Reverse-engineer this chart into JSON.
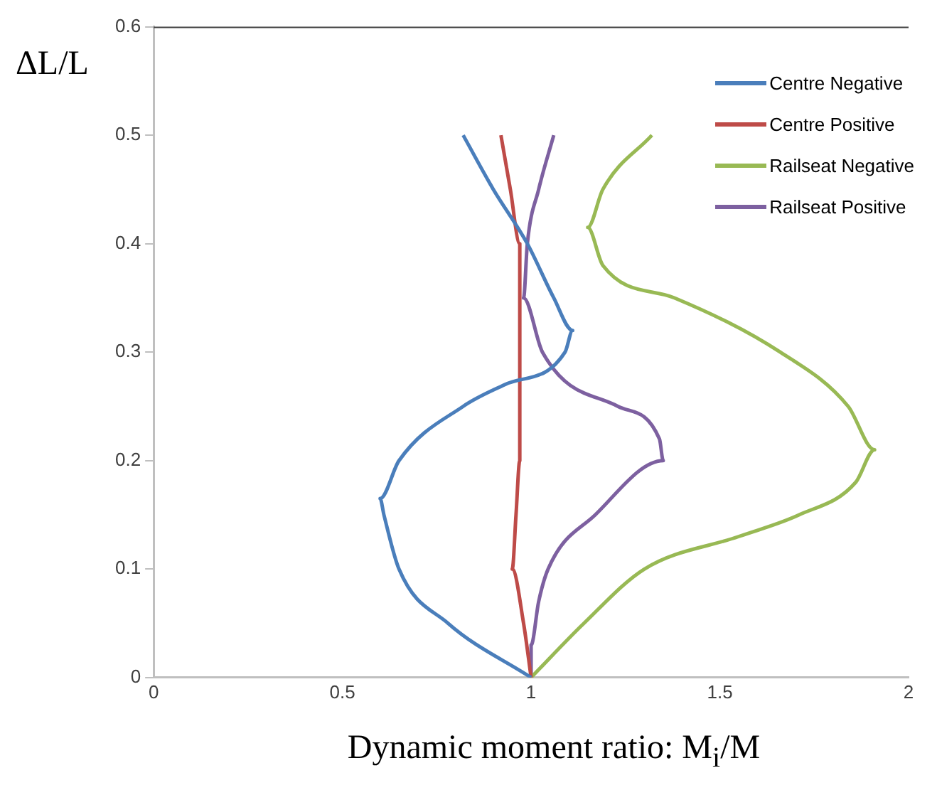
{
  "chart_data": {
    "type": "line",
    "xlabel": "Dynamic moment ratio: M$_{i}$/M",
    "ylabel": "ΔL/L",
    "xlim": [
      0,
      2
    ],
    "xticks": [
      0,
      0.5,
      1,
      1.5,
      2
    ],
    "ylim": [
      0,
      0.6
    ],
    "yticks": [
      0,
      0.1,
      0.2,
      0.3,
      0.4,
      0.5,
      0.6
    ],
    "grid": false,
    "legend": "top right",
    "series": [
      {
        "name": "Centre Negative",
        "color": "#4a7ebb",
        "x": [
          1,
          0.78,
          0.65,
          0.61,
          0.6,
          0.65,
          0.82,
          0.93,
          1.09,
          1.11,
          1.06,
          0.99,
          0.9,
          0.82
        ],
        "values": [
          0,
          0.05,
          0.1,
          0.15,
          0.165,
          0.2,
          0.25,
          0.27,
          0.3,
          0.32,
          0.35,
          0.4,
          0.45,
          0.5
        ]
      },
      {
        "name": "Centre Positive",
        "color": "#be4b48",
        "x": [
          1,
          0.98,
          0.95,
          0.96,
          0.97,
          0.97,
          0.97,
          0.97,
          0.97,
          0.945,
          0.92
        ],
        "values": [
          0,
          0.05,
          0.1,
          0.15,
          0.2,
          0.25,
          0.3,
          0.35,
          0.4,
          0.45,
          0.5
        ]
      },
      {
        "name": "Railseat Negative",
        "color": "#98b954",
        "x": [
          1,
          1.14,
          1.3,
          1.55,
          1.71,
          1.86,
          1.91,
          1.84,
          1.66,
          1.38,
          1.19,
          1.15,
          1.19,
          1.32
        ],
        "values": [
          0,
          0.05,
          0.1,
          0.13,
          0.15,
          0.18,
          0.21,
          0.25,
          0.3,
          0.35,
          0.38,
          0.415,
          0.45,
          0.5
        ]
      },
      {
        "name": "Railseat Positive",
        "color": "#7d60a0",
        "x": [
          1,
          1,
          1.02,
          1.045,
          1.17,
          1.35,
          1.34,
          1.23,
          1.03,
          0.98,
          0.99,
          1.02,
          1.06
        ],
        "values": [
          0,
          0.03,
          0.07,
          0.1,
          0.15,
          0.2,
          0.22,
          0.25,
          0.3,
          0.35,
          0.4,
          0.45,
          0.5
        ]
      }
    ]
  }
}
